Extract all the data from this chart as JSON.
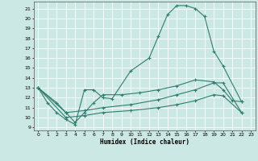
{
  "xlabel": "Humidex (Indice chaleur)",
  "bg_color": "#cce8e4",
  "grid_color": "#ffffff",
  "line_color": "#2e7d6e",
  "xlim": [
    -0.5,
    23.5
  ],
  "ylim": [
    8.7,
    21.7
  ],
  "xticks": [
    0,
    1,
    2,
    3,
    4,
    5,
    6,
    7,
    8,
    9,
    10,
    11,
    12,
    13,
    14,
    15,
    16,
    17,
    18,
    19,
    20,
    21,
    22,
    23
  ],
  "yticks": [
    9,
    10,
    11,
    12,
    13,
    14,
    15,
    16,
    17,
    18,
    19,
    20,
    21
  ],
  "lines": [
    {
      "x": [
        0,
        1,
        2,
        3,
        4,
        5,
        6,
        7,
        8,
        10,
        12,
        13,
        14,
        15,
        16,
        17,
        18,
        19,
        20,
        22
      ],
      "y": [
        13,
        11.5,
        10.5,
        9.8,
        9.3,
        12.8,
        12.8,
        12.0,
        11.9,
        14.7,
        16.0,
        18.2,
        20.4,
        21.3,
        21.3,
        21.0,
        20.2,
        16.7,
        15.2,
        11.6
      ]
    },
    {
      "x": [
        0,
        2,
        3,
        4,
        5,
        6,
        7,
        9,
        11,
        13,
        15,
        17,
        19,
        20,
        21,
        22
      ],
      "y": [
        13,
        11.5,
        10.5,
        9.5,
        10.5,
        11.5,
        12.3,
        12.3,
        12.5,
        12.8,
        13.2,
        13.8,
        13.6,
        12.8,
        11.7,
        11.6
      ]
    },
    {
      "x": [
        0,
        3,
        5,
        7,
        10,
        13,
        15,
        17,
        19,
        20,
        22
      ],
      "y": [
        13,
        10.5,
        10.7,
        11.0,
        11.3,
        11.8,
        12.3,
        12.8,
        13.5,
        13.5,
        10.5
      ]
    },
    {
      "x": [
        0,
        3,
        5,
        7,
        10,
        13,
        15,
        17,
        19,
        20,
        22
      ],
      "y": [
        13,
        10.0,
        10.2,
        10.5,
        10.7,
        11.0,
        11.3,
        11.7,
        12.3,
        12.2,
        10.5
      ]
    }
  ]
}
